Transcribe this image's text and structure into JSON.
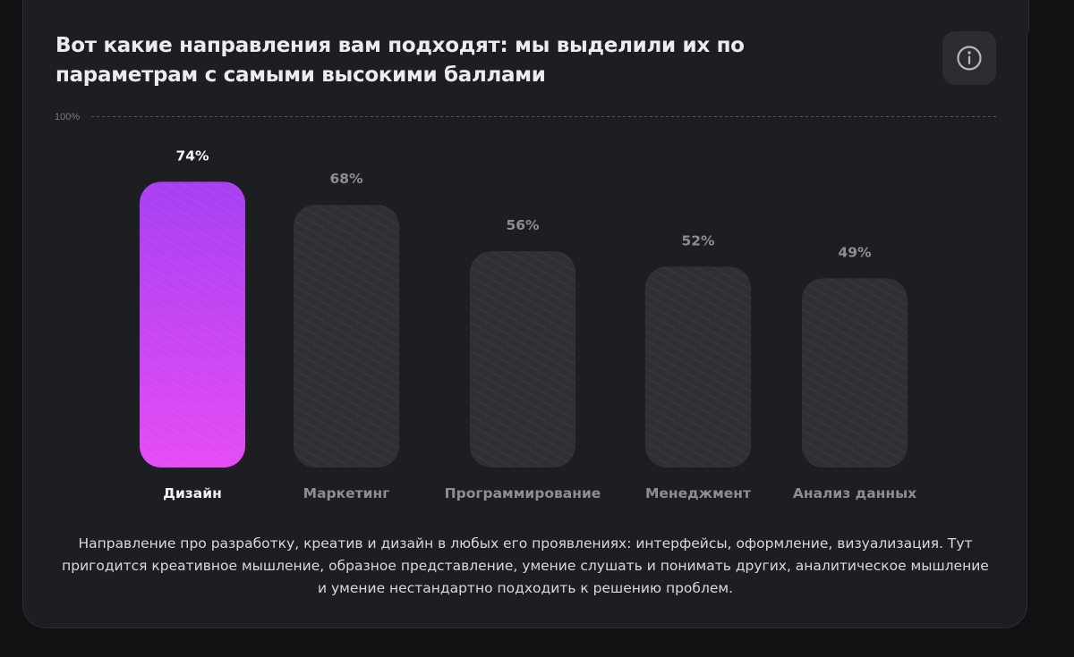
{
  "header": {
    "title": "Вот какие направления вам подходят: мы выделили их по параметрам с самыми высокими баллами"
  },
  "icons": {
    "info": "info-icon"
  },
  "colors": {
    "highlight_top": "#a740f2",
    "highlight_bottom": "#e54cf5",
    "bar_muted": "#2f3034",
    "label_active": "#f2f2f4",
    "label_muted": "#8d8e93"
  },
  "chart_data": {
    "type": "bar",
    "categories": [
      "Дизайн",
      "Маркетинг",
      "Программирование",
      "Менеджмент",
      "Анализ данных"
    ],
    "values": [
      74,
      68,
      56,
      52,
      49
    ],
    "value_labels": [
      "74%",
      "68%",
      "56%",
      "52%",
      "49%"
    ],
    "highlighted_index": 0,
    "ylim": [
      0,
      100
    ],
    "reference_line_label": "100%",
    "grid": false,
    "legend": "none"
  },
  "description": "Направление про разработку, креатив и дизайн в любых его проявлениях: интерфейсы, оформление, визуализация. Тут пригодится креативное мышление, образное представление, умение слушать и понимать других, аналитическое мышление и умение нестандартно подходить к решению проблем."
}
